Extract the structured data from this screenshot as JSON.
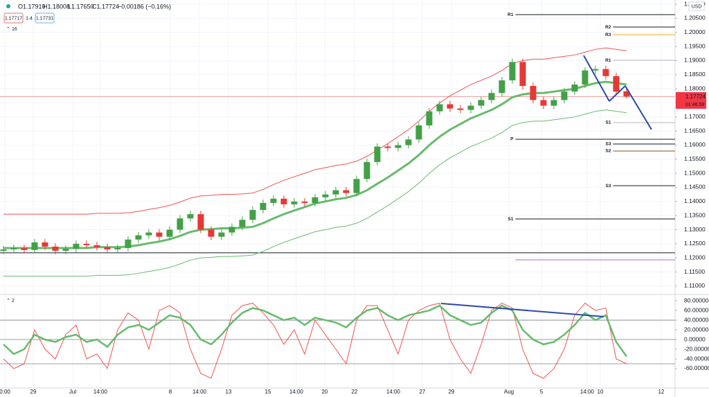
{
  "header": {
    "ohlc": [
      "O1.17910",
      "H1.18008",
      "L1.17650",
      "C1.17724",
      "−0.00186 (−0.16%)"
    ],
    "bid": "1.17717",
    "spread": "1.4",
    "ask": "1.17731",
    "main_pane": "16",
    "osc_pane": "2",
    "currency": "USD",
    "last_price": "1.17724",
    "countdown": "01:46:59"
  },
  "chart_data": [
    {
      "type": "candlestick",
      "up_color": "#43a047",
      "down_color": "#e53935",
      "xlim": [
        -0.33,
        64.67
      ],
      "ylim": [
        1.108,
        1.2115
      ],
      "grid": true,
      "xticks": [
        {
          "value": 0.14,
          "label": "0:00"
        },
        {
          "value": 2.87,
          "label": "29"
        },
        {
          "value": 6.67,
          "label": "Jul"
        },
        {
          "value": 9.33,
          "label": "14:00"
        },
        {
          "value": 16.07,
          "label": "8"
        },
        {
          "value": 18.87,
          "label": "14:00"
        },
        {
          "value": 21.67,
          "label": "13"
        },
        {
          "value": 25.47,
          "label": "15"
        },
        {
          "value": 28.2,
          "label": "14:00"
        },
        {
          "value": 30.93,
          "label": "20"
        },
        {
          "value": 33.8,
          "label": "22"
        },
        {
          "value": 37.53,
          "label": "14:00"
        },
        {
          "value": 40.33,
          "label": "27"
        },
        {
          "value": 43.13,
          "label": "29"
        },
        {
          "value": 48.67,
          "label": "Aug"
        },
        {
          "value": 51.8,
          "label": "5"
        },
        {
          "value": 56.2,
          "label": "14:00"
        },
        {
          "value": 57.47,
          "label": "10"
        },
        {
          "value": 63.33,
          "label": "12"
        }
      ],
      "yticks": [
        {
          "value": 1.11,
          "label": "1.11000"
        },
        {
          "value": 1.115,
          "label": "1.11500"
        },
        {
          "value": 1.12,
          "label": "1.12000"
        },
        {
          "value": 1.125,
          "label": "1.12500"
        },
        {
          "value": 1.13,
          "label": "1.13000"
        },
        {
          "value": 1.135,
          "label": "1.13500"
        },
        {
          "value": 1.14,
          "label": "1.14000"
        },
        {
          "value": 1.145,
          "label": "1.14500"
        },
        {
          "value": 1.15,
          "label": "1.15000"
        },
        {
          "value": 1.155,
          "label": "1.15500"
        },
        {
          "value": 1.16,
          "label": "1.16000"
        },
        {
          "value": 1.165,
          "label": "1.16500"
        },
        {
          "value": 1.17,
          "label": "1.17000"
        },
        {
          "value": 1.175,
          "label": "1.17500"
        },
        {
          "value": 1.18,
          "label": "1.18000"
        },
        {
          "value": 1.185,
          "label": "1.18500"
        },
        {
          "value": 1.19,
          "label": "1.19000"
        },
        {
          "value": 1.195,
          "label": "1.19500"
        },
        {
          "value": 1.2,
          "label": "1.20000"
        },
        {
          "value": 1.205,
          "label": "1.20500"
        },
        {
          "value": 1.21,
          "label": "1.21000"
        }
      ],
      "candles": [
        [
          1.1225,
          1.1242,
          1.1213,
          1.123
        ],
        [
          1.123,
          1.1247,
          1.1218,
          1.1235
        ],
        [
          1.1235,
          1.1247,
          1.1216,
          1.1228
        ],
        [
          1.1228,
          1.1267,
          1.1216,
          1.1255
        ],
        [
          1.1255,
          1.1267,
          1.1228,
          1.124
        ],
        [
          1.124,
          1.1252,
          1.1213,
          1.1225
        ],
        [
          1.1225,
          1.1244,
          1.1213,
          1.1232
        ],
        [
          1.1232,
          1.1262,
          1.122,
          1.125
        ],
        [
          1.125,
          1.1262,
          1.1233,
          1.1245
        ],
        [
          1.1245,
          1.1257,
          1.1226,
          1.1238
        ],
        [
          1.1238,
          1.125,
          1.1218,
          1.123
        ],
        [
          1.123,
          1.1247,
          1.1218,
          1.1235
        ],
        [
          1.1235,
          1.1277,
          1.1223,
          1.1265
        ],
        [
          1.1265,
          1.1292,
          1.1253,
          1.128
        ],
        [
          1.128,
          1.1302,
          1.1268,
          1.129
        ],
        [
          1.129,
          1.1302,
          1.1263,
          1.1275
        ],
        [
          1.1275,
          1.1312,
          1.1263,
          1.13
        ],
        [
          1.13,
          1.1352,
          1.1288,
          1.134
        ],
        [
          1.134,
          1.1367,
          1.1328,
          1.1355
        ],
        [
          1.1355,
          1.1367,
          1.1288,
          1.13
        ],
        [
          1.13,
          1.1312,
          1.1263,
          1.1275
        ],
        [
          1.1275,
          1.1302,
          1.1263,
          1.129
        ],
        [
          1.129,
          1.1322,
          1.1278,
          1.131
        ],
        [
          1.131,
          1.1347,
          1.1298,
          1.1335
        ],
        [
          1.1335,
          1.1382,
          1.1323,
          1.137
        ],
        [
          1.137,
          1.1407,
          1.1358,
          1.1395
        ],
        [
          1.1395,
          1.1422,
          1.1383,
          1.141
        ],
        [
          1.141,
          1.1422,
          1.1378,
          1.139
        ],
        [
          1.139,
          1.1412,
          1.1378,
          1.14
        ],
        [
          1.14,
          1.1412,
          1.1383,
          1.1395
        ],
        [
          1.1395,
          1.1427,
          1.1383,
          1.1415
        ],
        [
          1.1415,
          1.1437,
          1.1403,
          1.1425
        ],
        [
          1.1425,
          1.1452,
          1.1413,
          1.144
        ],
        [
          1.144,
          1.1452,
          1.1418,
          1.143
        ],
        [
          1.143,
          1.1492,
          1.1418,
          1.148
        ],
        [
          1.148,
          1.1552,
          1.1468,
          1.154
        ],
        [
          1.154,
          1.1607,
          1.1528,
          1.1595
        ],
        [
          1.1595,
          1.1607,
          1.1578,
          1.159
        ],
        [
          1.159,
          1.1612,
          1.1578,
          1.16
        ],
        [
          1.16,
          1.1632,
          1.1588,
          1.162
        ],
        [
          1.162,
          1.1682,
          1.1608,
          1.167
        ],
        [
          1.167,
          1.1732,
          1.1658,
          1.172
        ],
        [
          1.172,
          1.1757,
          1.1708,
          1.1745
        ],
        [
          1.1745,
          1.1757,
          1.1718,
          1.173
        ],
        [
          1.173,
          1.1742,
          1.1713,
          1.1725
        ],
        [
          1.1725,
          1.1752,
          1.1713,
          1.174
        ],
        [
          1.174,
          1.1772,
          1.1728,
          1.176
        ],
        [
          1.176,
          1.1797,
          1.1748,
          1.1785
        ],
        [
          1.1785,
          1.1842,
          1.1773,
          1.183
        ],
        [
          1.183,
          1.1907,
          1.1818,
          1.1895
        ],
        [
          1.1895,
          1.1907,
          1.1798,
          1.181
        ],
        [
          1.181,
          1.1822,
          1.1748,
          1.176
        ],
        [
          1.176,
          1.1772,
          1.1728,
          1.174
        ],
        [
          1.174,
          1.1772,
          1.1728,
          1.176
        ],
        [
          1.176,
          1.1802,
          1.1748,
          1.179
        ],
        [
          1.179,
          1.1827,
          1.1778,
          1.1815
        ],
        [
          1.1815,
          1.1877,
          1.1803,
          1.1865
        ],
        [
          1.1865,
          1.1882,
          1.1853,
          1.187
        ],
        [
          1.187,
          1.1882,
          1.1833,
          1.1845
        ],
        [
          1.1845,
          1.1857,
          1.1778,
          1.179
        ],
        [
          1.1791,
          1.18008,
          1.1765,
          1.17724
        ]
      ],
      "series": [
        {
          "color": "#ef5350",
          "width": 1,
          "values": [
            1.1355,
            1.1355,
            1.1355,
            1.1355,
            1.1355,
            1.1355,
            1.1355,
            1.1355,
            1.1355,
            1.1358,
            1.1358,
            1.1358,
            1.136,
            1.1365,
            1.1372,
            1.1378,
            1.1386,
            1.1398,
            1.1412,
            1.142,
            1.1422,
            1.1425,
            1.1425,
            1.1427,
            1.143,
            1.1443,
            1.146,
            1.1475,
            1.1488,
            1.15,
            1.1513,
            1.152,
            1.1528,
            1.1533,
            1.1543,
            1.156,
            1.1583,
            1.1605,
            1.163,
            1.1655,
            1.1685,
            1.172,
            1.175,
            1.1775,
            1.1795,
            1.1815,
            1.183,
            1.1845,
            1.1865,
            1.189,
            1.19,
            1.1905,
            1.1905,
            1.191,
            1.1915,
            1.192,
            1.193,
            1.194,
            1.1945,
            1.194,
            1.1935
          ]
        },
        {
          "color": "#66bb6a",
          "width": 3,
          "values": [
            1.1235,
            1.1235,
            1.1235,
            1.1235,
            1.1235,
            1.1235,
            1.1235,
            1.1235,
            1.1235,
            1.1238,
            1.1238,
            1.1238,
            1.124,
            1.1245,
            1.1252,
            1.1258,
            1.1266,
            1.1278,
            1.1292,
            1.13,
            1.1302,
            1.1305,
            1.1305,
            1.1307,
            1.131,
            1.1323,
            1.134,
            1.1355,
            1.1368,
            1.138,
            1.1393,
            1.14,
            1.1408,
            1.1413,
            1.1423,
            1.144,
            1.1463,
            1.1485,
            1.151,
            1.1535,
            1.1565,
            1.16,
            1.163,
            1.1655,
            1.1675,
            1.1695,
            1.171,
            1.1725,
            1.1745,
            1.177,
            1.178,
            1.1785,
            1.1785,
            1.179,
            1.1795,
            1.18,
            1.181,
            1.182,
            1.1825,
            1.182,
            1.1815
          ]
        },
        {
          "color": "#66bb6a",
          "width": 1,
          "values": [
            1.1135,
            1.1135,
            1.1135,
            1.1135,
            1.1135,
            1.1135,
            1.1135,
            1.1135,
            1.1135,
            1.1138,
            1.1138,
            1.1138,
            1.114,
            1.1145,
            1.1152,
            1.1158,
            1.1166,
            1.1178,
            1.1192,
            1.12,
            1.1202,
            1.1205,
            1.1205,
            1.1207,
            1.121,
            1.1223,
            1.124,
            1.1255,
            1.1268,
            1.128,
            1.1293,
            1.13,
            1.1308,
            1.1313,
            1.1323,
            1.134,
            1.1363,
            1.1385,
            1.141,
            1.1435,
            1.1465,
            1.15,
            1.153,
            1.1555,
            1.1575,
            1.1595,
            1.161,
            1.1625,
            1.1645,
            1.167,
            1.168,
            1.1685,
            1.1685,
            1.169,
            1.1695,
            1.17,
            1.171,
            1.172,
            1.1725,
            1.172,
            1.1715
          ]
        }
      ],
      "levels": [
        {
          "label": "R1",
          "value": 1.2063,
          "from": 49.3,
          "color": "#131722"
        },
        {
          "label": "R2",
          "value": 1.2019,
          "from": 58.7,
          "color": "#131722"
        },
        {
          "label": "R3",
          "value": 1.1992,
          "from": 58.7,
          "color": "#f5a623"
        },
        {
          "label": "R1",
          "value": 1.1901,
          "from": 58.7,
          "color": "#b2b5be"
        },
        {
          "label": "S1",
          "value": 1.168,
          "from": 58.7,
          "color": "#b2b5be"
        },
        {
          "label": "P",
          "value": 1.1621,
          "from": 49.3,
          "color": "#131722"
        },
        {
          "label": "S3",
          "value": 1.1604,
          "from": 58.7,
          "color": "#131722"
        },
        {
          "label": "S2",
          "value": 1.1579,
          "from": 58.7,
          "color": "#8d4a1f"
        },
        {
          "label": "S3",
          "value": 1.1456,
          "from": 58.7,
          "color": "#131722"
        },
        {
          "label": "S1",
          "value": 1.1338,
          "from": 49.3,
          "color": "#131722"
        }
      ],
      "lines": [
        {
          "value": 1.1218,
          "from": -0.33,
          "color": "#131722"
        },
        {
          "value": 1.1193,
          "from": 49.3,
          "color": "#ba68c8"
        },
        {
          "value": 1.17724,
          "from": -0.33,
          "color": "#ef9a9a"
        }
      ]
    },
    {
      "type": "line",
      "xlim": [
        -0.33,
        64.67
      ],
      "ylim": [
        -97.2,
        88.7
      ],
      "yticks": [
        {
          "value": -60,
          "label": "-60.00000"
        },
        {
          "value": -40,
          "label": "-40.00000"
        },
        {
          "value": -20,
          "label": "-20.00000"
        },
        {
          "value": 0,
          "label": "0.00000"
        },
        {
          "value": 20,
          "label": "20.00000"
        },
        {
          "value": 40,
          "label": "40.00000"
        },
        {
          "value": 60,
          "label": "60.00000"
        },
        {
          "value": 80,
          "label": "80.00000"
        }
      ],
      "levels": [
        40,
        0,
        -50
      ],
      "series": [
        {
          "color": "#ef5350",
          "width": 1,
          "values": [
            -40,
            -60,
            -50,
            20,
            -20,
            -40,
            10,
            30,
            -40,
            -30,
            -60,
            20,
            55,
            40,
            -20,
            60,
            70,
            55,
            -20,
            -70,
            -80,
            -20,
            50,
            70,
            75,
            55,
            30,
            -10,
            20,
            -30,
            40,
            10,
            -20,
            -50,
            40,
            70,
            70,
            20,
            -30,
            40,
            60,
            70,
            75,
            0,
            -40,
            -70,
            -10,
            60,
            75,
            65,
            -20,
            -70,
            -80,
            -60,
            -20,
            50,
            75,
            60,
            65,
            -40,
            -50
          ]
        },
        {
          "color": "#66bb6a",
          "width": 2.5,
          "values": [
            -10,
            -30,
            -20,
            10,
            0,
            -5,
            5,
            10,
            -5,
            0,
            -15,
            10,
            25,
            30,
            20,
            35,
            50,
            45,
            30,
            0,
            -10,
            10,
            35,
            55,
            65,
            60,
            50,
            40,
            45,
            30,
            45,
            40,
            35,
            25,
            45,
            60,
            65,
            50,
            40,
            50,
            55,
            60,
            70,
            50,
            40,
            30,
            35,
            55,
            70,
            60,
            20,
            0,
            -10,
            -5,
            10,
            30,
            55,
            40,
            50,
            -5,
            -35
          ]
        }
      ]
    }
  ]
}
